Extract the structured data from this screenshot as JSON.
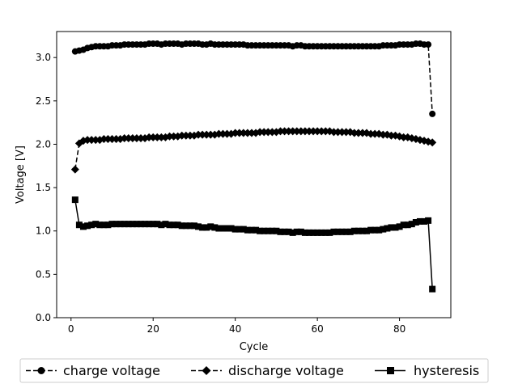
{
  "chart_data": {
    "type": "line",
    "title": "",
    "xlabel": "Cycle",
    "ylabel": "Voltage [V]",
    "xlim": [
      -3.5,
      92.5
    ],
    "ylim": [
      0.0,
      3.3
    ],
    "xticks": [
      0,
      20,
      40,
      60,
      80
    ],
    "yticks": [
      0.0,
      0.5,
      1.0,
      1.5,
      2.0,
      2.5,
      3.0
    ],
    "grid": false,
    "legend": {
      "placement": "bottom-outside",
      "entries": [
        "charge voltage",
        "discharge voltage",
        "hysteresis"
      ]
    },
    "series": [
      {
        "name": "charge voltage",
        "marker": "circle",
        "line": "dashed",
        "color": "#000000",
        "x": [
          1,
          2,
          3,
          4,
          5,
          6,
          7,
          8,
          9,
          10,
          11,
          12,
          13,
          14,
          15,
          16,
          17,
          18,
          19,
          20,
          21,
          22,
          23,
          24,
          25,
          26,
          27,
          28,
          29,
          30,
          31,
          32,
          33,
          34,
          35,
          36,
          37,
          38,
          39,
          40,
          41,
          42,
          43,
          44,
          45,
          46,
          47,
          48,
          49,
          50,
          51,
          52,
          53,
          54,
          55,
          56,
          57,
          58,
          59,
          60,
          61,
          62,
          63,
          64,
          65,
          66,
          67,
          68,
          69,
          70,
          71,
          72,
          73,
          74,
          75,
          76,
          77,
          78,
          79,
          80,
          81,
          82,
          83,
          84,
          85,
          86,
          87,
          88
        ],
        "values": [
          3.07,
          3.08,
          3.09,
          3.11,
          3.12,
          3.13,
          3.13,
          3.13,
          3.13,
          3.14,
          3.14,
          3.14,
          3.15,
          3.15,
          3.15,
          3.15,
          3.15,
          3.15,
          3.16,
          3.16,
          3.16,
          3.15,
          3.16,
          3.16,
          3.16,
          3.16,
          3.15,
          3.16,
          3.16,
          3.16,
          3.16,
          3.15,
          3.15,
          3.16,
          3.15,
          3.15,
          3.15,
          3.15,
          3.15,
          3.15,
          3.15,
          3.15,
          3.14,
          3.14,
          3.14,
          3.14,
          3.14,
          3.14,
          3.14,
          3.14,
          3.14,
          3.14,
          3.14,
          3.13,
          3.14,
          3.14,
          3.13,
          3.13,
          3.13,
          3.13,
          3.13,
          3.13,
          3.13,
          3.13,
          3.13,
          3.13,
          3.13,
          3.13,
          3.13,
          3.13,
          3.13,
          3.13,
          3.13,
          3.13,
          3.13,
          3.14,
          3.14,
          3.14,
          3.14,
          3.15,
          3.15,
          3.15,
          3.15,
          3.16,
          3.16,
          3.15,
          3.15,
          2.35
        ]
      },
      {
        "name": "discharge voltage",
        "marker": "diamond",
        "line": "dashed",
        "color": "#000000",
        "x": [
          1,
          2,
          3,
          4,
          5,
          6,
          7,
          8,
          9,
          10,
          11,
          12,
          13,
          14,
          15,
          16,
          17,
          18,
          19,
          20,
          21,
          22,
          23,
          24,
          25,
          26,
          27,
          28,
          29,
          30,
          31,
          32,
          33,
          34,
          35,
          36,
          37,
          38,
          39,
          40,
          41,
          42,
          43,
          44,
          45,
          46,
          47,
          48,
          49,
          50,
          51,
          52,
          53,
          54,
          55,
          56,
          57,
          58,
          59,
          60,
          61,
          62,
          63,
          64,
          65,
          66,
          67,
          68,
          69,
          70,
          71,
          72,
          73,
          74,
          75,
          76,
          77,
          78,
          79,
          80,
          81,
          82,
          83,
          84,
          85,
          86,
          87,
          88
        ],
        "values": [
          1.71,
          2.01,
          2.04,
          2.05,
          2.05,
          2.05,
          2.05,
          2.06,
          2.06,
          2.06,
          2.06,
          2.06,
          2.07,
          2.07,
          2.07,
          2.07,
          2.07,
          2.07,
          2.08,
          2.08,
          2.08,
          2.08,
          2.08,
          2.09,
          2.09,
          2.09,
          2.1,
          2.1,
          2.1,
          2.1,
          2.11,
          2.11,
          2.11,
          2.11,
          2.11,
          2.12,
          2.12,
          2.12,
          2.12,
          2.13,
          2.13,
          2.13,
          2.13,
          2.13,
          2.13,
          2.14,
          2.14,
          2.14,
          2.14,
          2.14,
          2.15,
          2.15,
          2.15,
          2.15,
          2.15,
          2.15,
          2.15,
          2.15,
          2.15,
          2.15,
          2.15,
          2.15,
          2.15,
          2.14,
          2.14,
          2.14,
          2.14,
          2.14,
          2.13,
          2.13,
          2.13,
          2.13,
          2.12,
          2.12,
          2.12,
          2.11,
          2.11,
          2.1,
          2.1,
          2.09,
          2.08,
          2.08,
          2.07,
          2.06,
          2.05,
          2.04,
          2.03,
          2.02
        ]
      },
      {
        "name": "hysteresis",
        "marker": "square",
        "line": "solid",
        "color": "#000000",
        "x": [
          1,
          2,
          3,
          4,
          5,
          6,
          7,
          8,
          9,
          10,
          11,
          12,
          13,
          14,
          15,
          16,
          17,
          18,
          19,
          20,
          21,
          22,
          23,
          24,
          25,
          26,
          27,
          28,
          29,
          30,
          31,
          32,
          33,
          34,
          35,
          36,
          37,
          38,
          39,
          40,
          41,
          42,
          43,
          44,
          45,
          46,
          47,
          48,
          49,
          50,
          51,
          52,
          53,
          54,
          55,
          56,
          57,
          58,
          59,
          60,
          61,
          62,
          63,
          64,
          65,
          66,
          67,
          68,
          69,
          70,
          71,
          72,
          73,
          74,
          75,
          76,
          77,
          78,
          79,
          80,
          81,
          82,
          83,
          84,
          85,
          86,
          87,
          88
        ],
        "values": [
          1.36,
          1.07,
          1.05,
          1.06,
          1.07,
          1.08,
          1.07,
          1.07,
          1.07,
          1.08,
          1.08,
          1.08,
          1.08,
          1.08,
          1.08,
          1.08,
          1.08,
          1.08,
          1.08,
          1.08,
          1.08,
          1.07,
          1.08,
          1.07,
          1.07,
          1.07,
          1.06,
          1.06,
          1.06,
          1.06,
          1.05,
          1.04,
          1.04,
          1.05,
          1.04,
          1.03,
          1.03,
          1.03,
          1.03,
          1.02,
          1.02,
          1.02,
          1.01,
          1.01,
          1.01,
          1.0,
          1.0,
          1.0,
          1.0,
          1.0,
          0.99,
          0.99,
          0.99,
          0.98,
          0.99,
          0.99,
          0.98,
          0.98,
          0.98,
          0.98,
          0.98,
          0.98,
          0.98,
          0.99,
          0.99,
          0.99,
          0.99,
          0.99,
          1.0,
          1.0,
          1.0,
          1.0,
          1.01,
          1.01,
          1.01,
          1.02,
          1.03,
          1.04,
          1.04,
          1.05,
          1.07,
          1.07,
          1.08,
          1.1,
          1.11,
          1.11,
          1.12,
          0.33
        ]
      }
    ]
  }
}
